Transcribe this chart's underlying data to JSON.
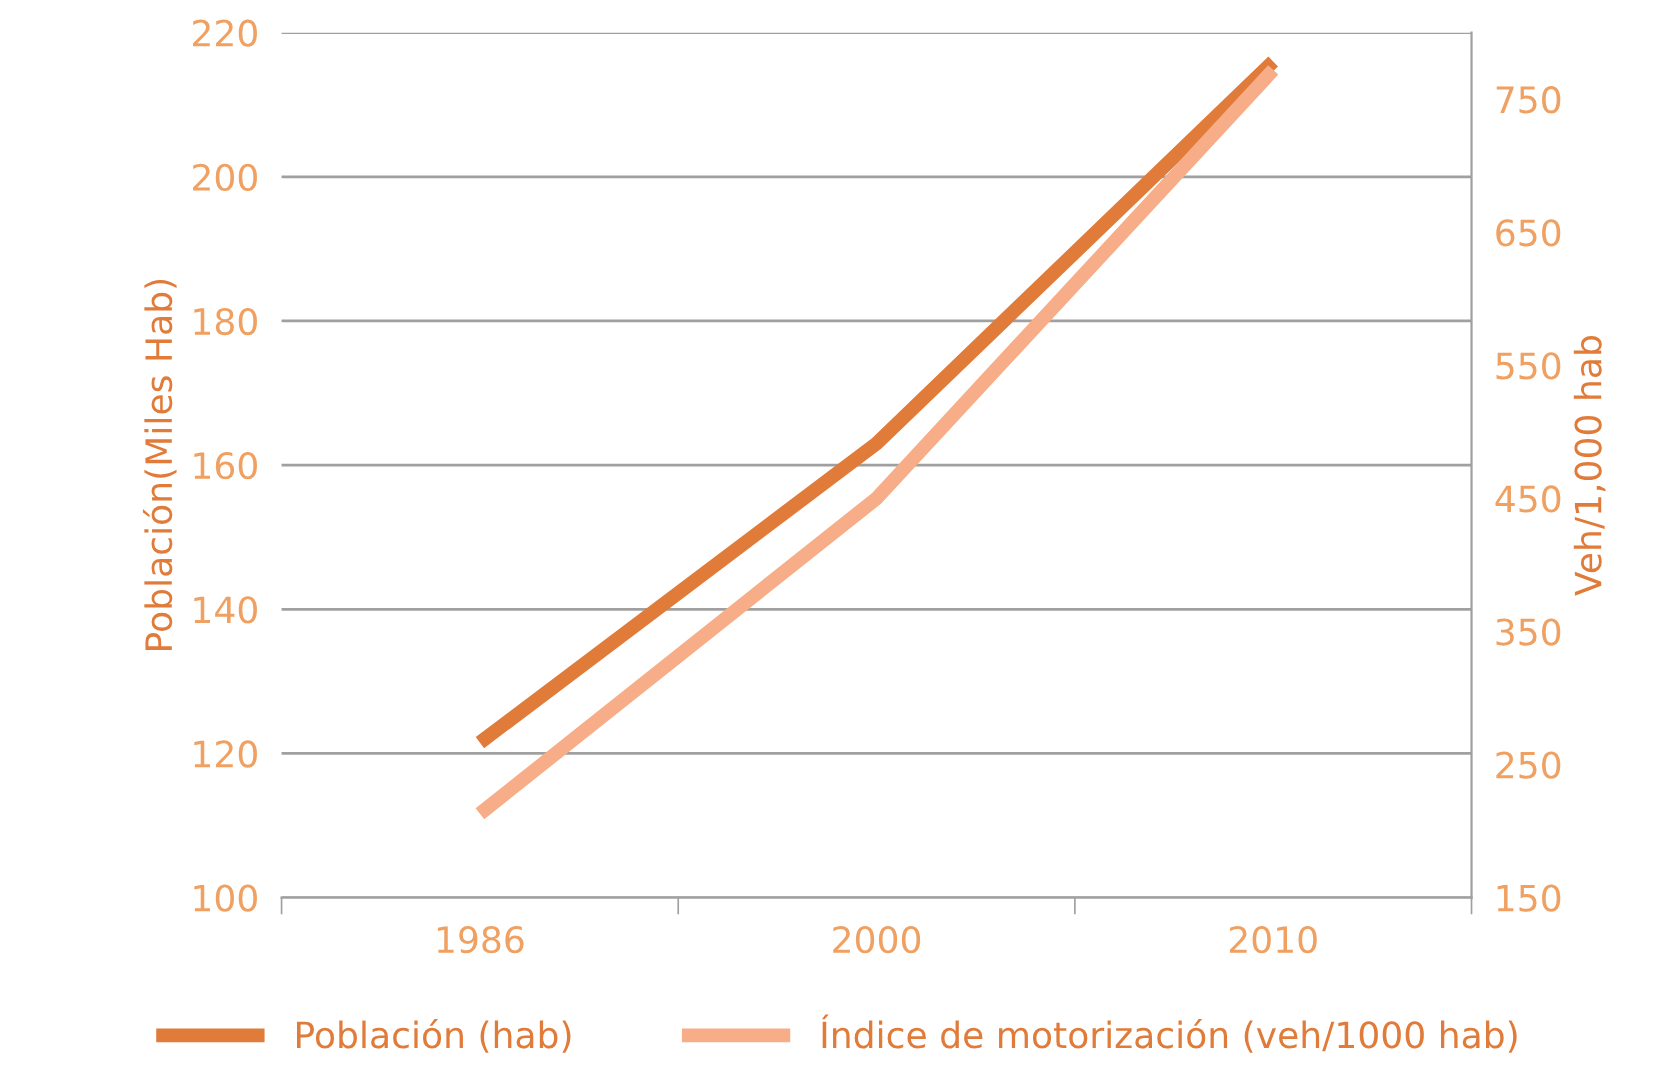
{
  "chart_data": {
    "type": "line",
    "ylabel": "Población(Miles Hab)",
    "y2label": "Veh/1,000 hab",
    "categories": [
      "1986",
      "2000",
      "2010"
    ],
    "series": [
      {
        "name": "Población (hab)",
        "color": "#e07b39",
        "values": [
          121.5,
          163,
          216
        ]
      },
      {
        "name": "Índice de motorización (veh/1000 hab)",
        "color": "#f7ad87",
        "values": [
          213,
          450,
          772
        ],
        "axis": "y2"
      }
    ],
    "ylim": [
      100,
      220
    ],
    "yticks": [
      100,
      120,
      140,
      160,
      180,
      200,
      220
    ],
    "y2lim": [
      150,
      800
    ],
    "y2ticks": [
      150,
      250,
      350,
      450,
      550,
      650,
      750
    ],
    "grid": "y",
    "legend": "bottom",
    "marker": "none",
    "line_style": "solid"
  }
}
